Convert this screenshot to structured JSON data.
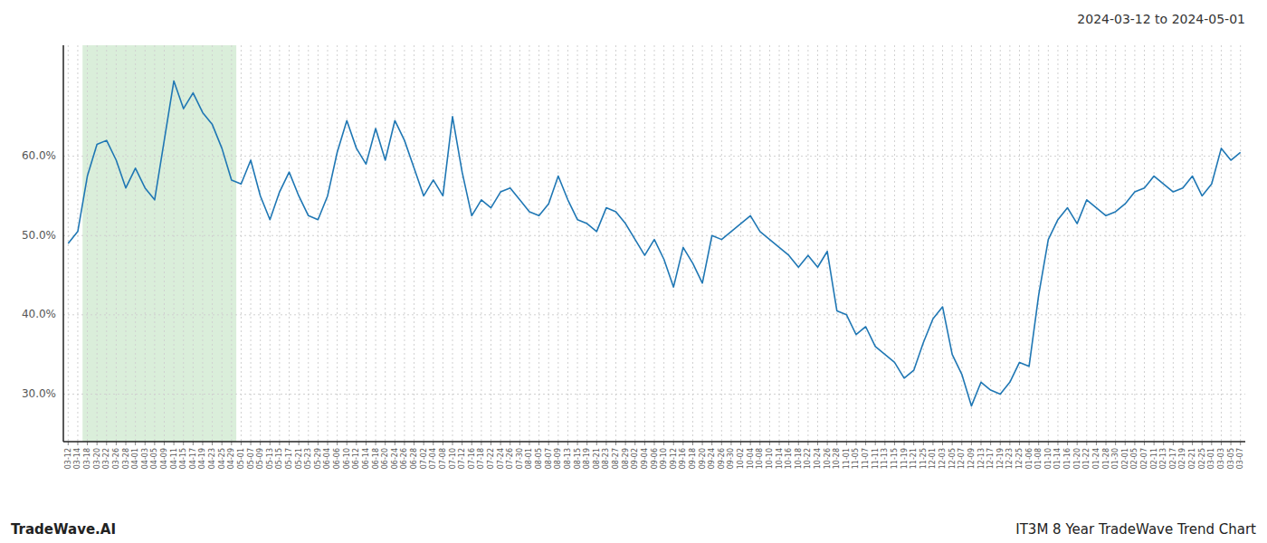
{
  "chart_data": {
    "type": "line",
    "title": "2024-03-12 to 2024-05-01",
    "annotations": [
      "TradeWave.AI",
      "IT3M 8 Year TradeWave Trend Chart"
    ],
    "color": "#1f77b4",
    "grid": true,
    "highlight": {
      "start": "03-18",
      "end": "04-29",
      "color": "#daeeda"
    },
    "ylim": [
      24,
      74
    ],
    "yticks": [
      {
        "value": 30.0,
        "label": "30.0%"
      },
      {
        "value": 40.0,
        "label": "40.0%"
      },
      {
        "value": 50.0,
        "label": "50.0%"
      },
      {
        "value": 60.0,
        "label": "60.0%"
      }
    ],
    "categories": [
      "03-12",
      "03-14",
      "03-18",
      "03-20",
      "03-22",
      "03-26",
      "03-28",
      "04-01",
      "04-03",
      "04-05",
      "04-09",
      "04-11",
      "04-15",
      "04-17",
      "04-19",
      "04-23",
      "04-25",
      "04-29",
      "05-01",
      "05-07",
      "05-09",
      "05-13",
      "05-15",
      "05-17",
      "05-21",
      "05-23",
      "05-29",
      "06-04",
      "06-06",
      "06-10",
      "06-12",
      "06-14",
      "06-18",
      "06-20",
      "06-24",
      "06-26",
      "06-28",
      "07-02",
      "07-04",
      "07-08",
      "07-10",
      "07-12",
      "07-16",
      "07-18",
      "07-22",
      "07-24",
      "07-26",
      "07-30",
      "08-01",
      "08-05",
      "08-07",
      "08-09",
      "08-13",
      "08-15",
      "08-19",
      "08-21",
      "08-23",
      "08-27",
      "08-29",
      "09-02",
      "09-04",
      "09-06",
      "09-10",
      "09-12",
      "09-16",
      "09-18",
      "09-20",
      "09-24",
      "09-26",
      "09-30",
      "10-02",
      "10-04",
      "10-08",
      "10-10",
      "10-14",
      "10-16",
      "10-18",
      "10-22",
      "10-24",
      "10-26",
      "10-28",
      "11-01",
      "11-05",
      "11-07",
      "11-11",
      "11-13",
      "11-15",
      "11-19",
      "11-21",
      "11-25",
      "12-01",
      "12-03",
      "12-05",
      "12-07",
      "12-09",
      "12-13",
      "12-17",
      "12-19",
      "12-23",
      "12-25",
      "01-06",
      "01-08",
      "01-10",
      "01-14",
      "01-16",
      "01-20",
      "01-22",
      "01-24",
      "01-28",
      "01-30",
      "02-01",
      "02-05",
      "02-07",
      "02-11",
      "02-13",
      "02-17",
      "02-19",
      "02-21",
      "02-25",
      "03-01",
      "03-03",
      "03-05",
      "03-07"
    ],
    "values": [
      49.0,
      50.5,
      57.5,
      61.5,
      62.0,
      59.5,
      56.0,
      58.5,
      56.0,
      54.5,
      62.0,
      69.5,
      66.0,
      68.0,
      65.5,
      64.0,
      61.0,
      57.0,
      56.5,
      59.5,
      55.0,
      52.0,
      55.5,
      58.0,
      55.0,
      52.5,
      52.0,
      55.0,
      60.5,
      64.5,
      61.0,
      59.0,
      63.5,
      59.5,
      64.5,
      62.0,
      58.5,
      55.0,
      57.0,
      55.0,
      65.0,
      58.0,
      52.5,
      54.5,
      53.5,
      55.5,
      56.0,
      54.5,
      53.0,
      52.5,
      54.0,
      57.5,
      54.5,
      52.0,
      51.5,
      50.5,
      53.5,
      53.0,
      51.5,
      49.5,
      47.5,
      49.5,
      47.0,
      43.5,
      48.5,
      46.5,
      44.0,
      50.0,
      49.5,
      50.5,
      51.5,
      52.5,
      50.5,
      49.5,
      48.5,
      47.5,
      46.0,
      47.5,
      46.0,
      48.0,
      40.5,
      40.0,
      37.5,
      38.5,
      36.0,
      35.0,
      34.0,
      32.0,
      33.0,
      36.5,
      39.5,
      41.0,
      35.0,
      32.5,
      28.5,
      31.5,
      30.5,
      30.0,
      31.5,
      34.0,
      33.5,
      42.5,
      49.5,
      52.0,
      53.5,
      51.5,
      54.5,
      53.5,
      52.5,
      53.0,
      54.0,
      55.5,
      56.0,
      57.5,
      56.5,
      55.5,
      56.0,
      57.5,
      55.0,
      56.5,
      61.0,
      59.5,
      60.5
    ]
  }
}
